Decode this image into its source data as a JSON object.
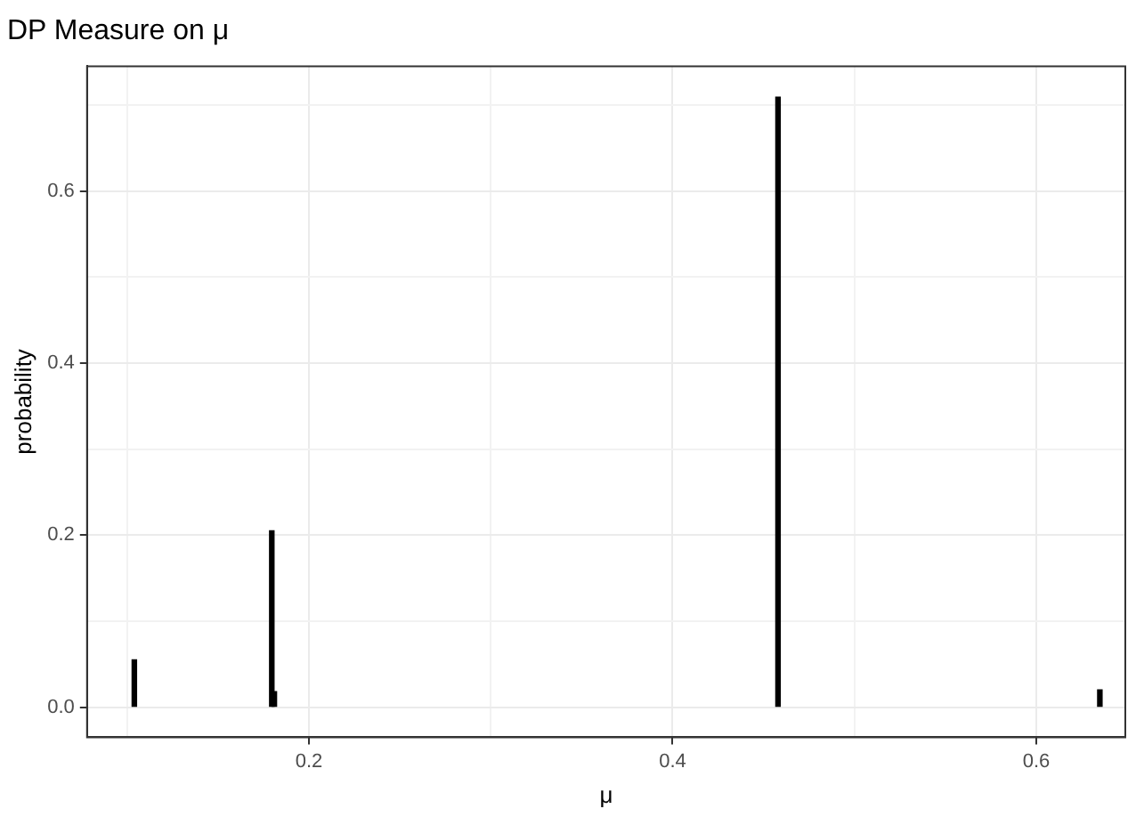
{
  "chart_data": {
    "type": "bar",
    "title": "DP Measure on μ",
    "xlabel": "μ",
    "ylabel": "probability",
    "x": [
      0.104,
      0.1796,
      0.181,
      0.458,
      0.635
    ],
    "values": [
      0.055,
      0.205,
      0.018,
      0.709,
      0.02
    ],
    "color": "#000000",
    "xlim": [
      0.078,
      0.649
    ],
    "ylim": [
      -0.035,
      0.745
    ],
    "xticks": [
      {
        "value": 0.1,
        "label": null
      },
      0.2,
      {
        "value": 0.3,
        "label": null
      },
      0.4,
      {
        "value": 0.5,
        "label": null
      },
      0.6
    ],
    "yticks": [
      {
        "value": 0,
        "label": "0.0"
      },
      {
        "value": 0.1,
        "label": null
      },
      0.2,
      {
        "value": 0.3,
        "label": null
      },
      0.4,
      {
        "value": 0.5,
        "label": null
      },
      0.6,
      {
        "value": 0.7,
        "label": null
      }
    ],
    "grid": true,
    "legend": false
  }
}
